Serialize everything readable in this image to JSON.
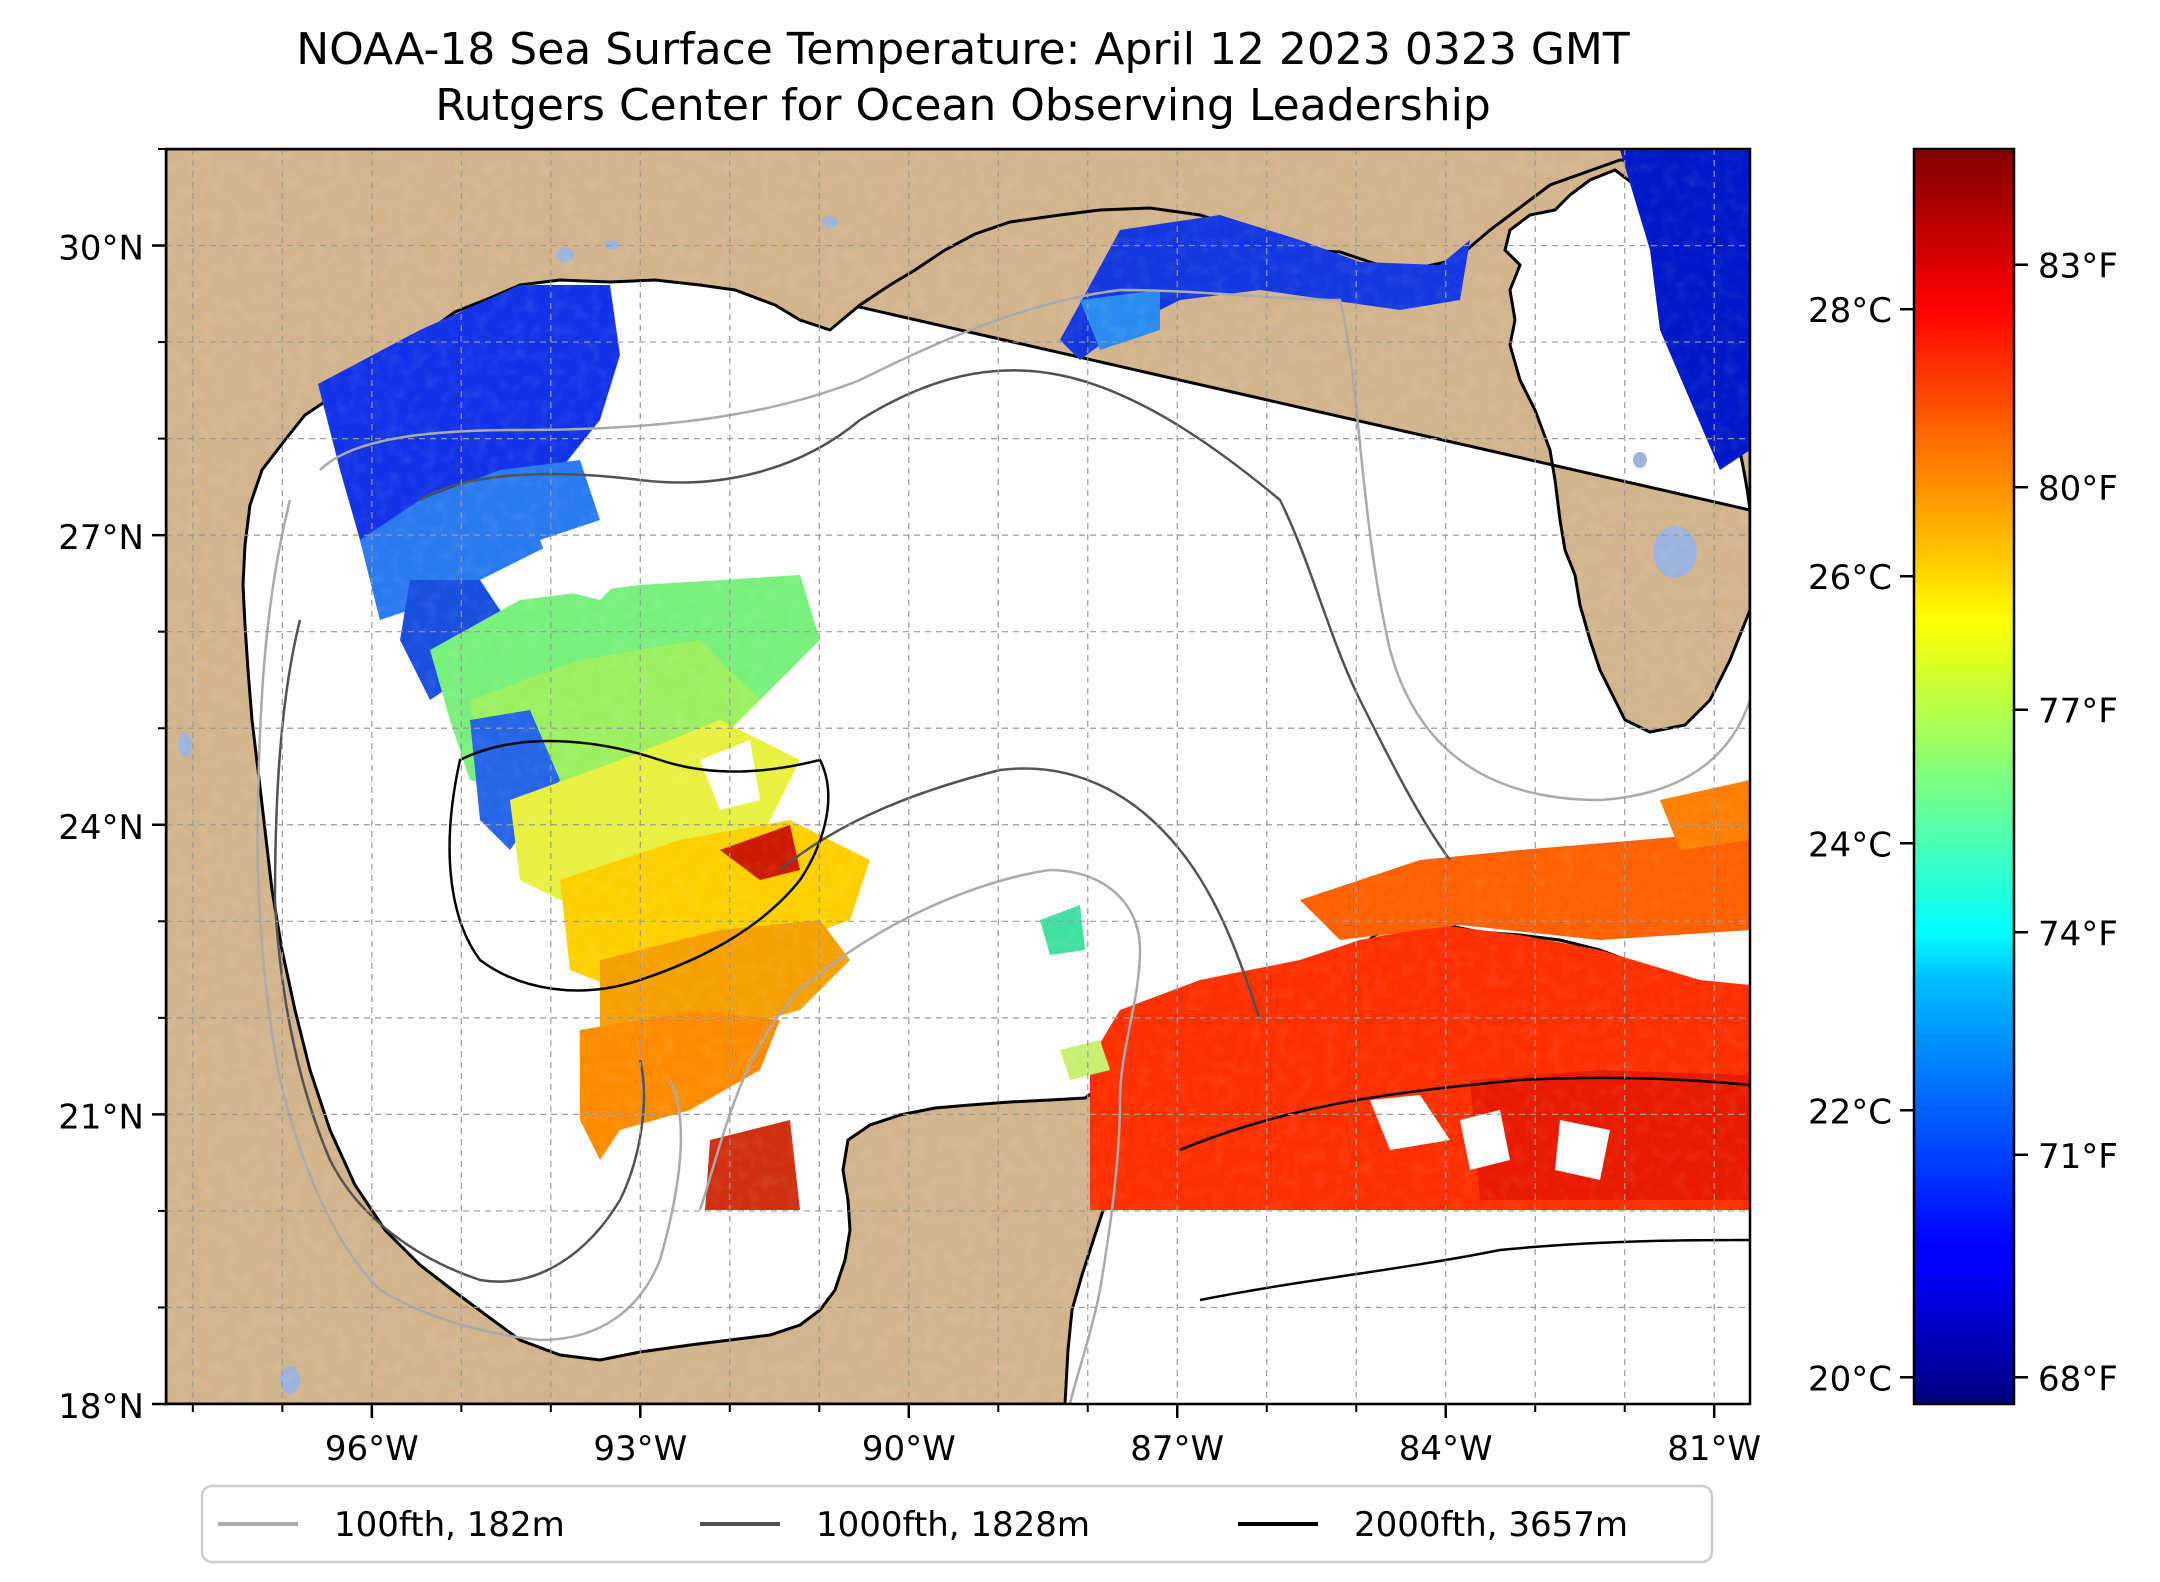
{
  "title": {
    "line1": "NOAA-18 Sea Surface Temperature: April 12 2023 0323 GMT",
    "line2": "Rutgers Center for Ocean Observing Leadership"
  },
  "map": {
    "lon_range": [
      -98.3,
      -80.6
    ],
    "lat_range": [
      18.0,
      31.0
    ],
    "lat_ticks": [
      {
        "value": 30,
        "label": "30°N"
      },
      {
        "value": 27,
        "label": "27°N"
      },
      {
        "value": 24,
        "label": "24°N"
      },
      {
        "value": 21,
        "label": "21°N"
      },
      {
        "value": 18,
        "label": "18°N"
      }
    ],
    "lon_ticks": [
      {
        "value": -96,
        "label": "96°W"
      },
      {
        "value": -93,
        "label": "93°W"
      },
      {
        "value": -90,
        "label": "90°W"
      },
      {
        "value": -87,
        "label": "87°W"
      },
      {
        "value": -84,
        "label": "84°W"
      },
      {
        "value": -81,
        "label": "81°W"
      }
    ],
    "gridlines": true,
    "land_color": "#D2B48C",
    "lake_color": "#9CB4DC"
  },
  "colorbar": {
    "colormap": "jet",
    "range_c": [
      19.8,
      29.2
    ],
    "celsius_ticks": [
      {
        "value": 20,
        "label": "20°C"
      },
      {
        "value": 22,
        "label": "22°C"
      },
      {
        "value": 24,
        "label": "24°C"
      },
      {
        "value": 26,
        "label": "26°C"
      },
      {
        "value": 28,
        "label": "28°C"
      }
    ],
    "fahrenheit_ticks": [
      {
        "value": 68,
        "label": "68°F"
      },
      {
        "value": 71,
        "label": "71°F"
      },
      {
        "value": 74,
        "label": "74°F"
      },
      {
        "value": 77,
        "label": "77°F"
      },
      {
        "value": 80,
        "label": "80°F"
      },
      {
        "value": 83,
        "label": "83°F"
      }
    ]
  },
  "legend": {
    "placement": "bottom-center",
    "entries": [
      {
        "label": "100fth, 182m",
        "color": "#A9A9A9"
      },
      {
        "label": "1000fth, 1828m",
        "color": "#505050"
      },
      {
        "label": "2000fth, 3657m",
        "color": "#000000"
      }
    ]
  }
}
